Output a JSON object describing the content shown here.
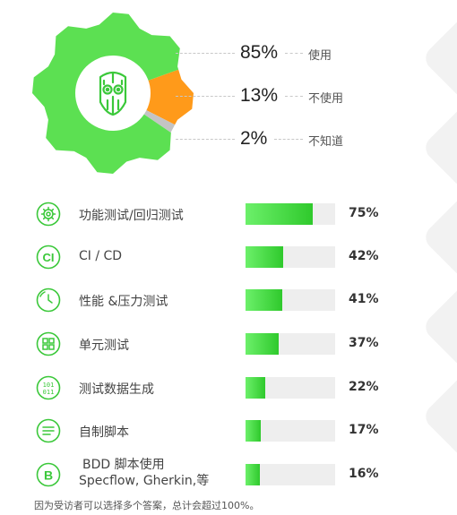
{
  "chart_data": [
    {
      "type": "pie",
      "categories": [
        "使用",
        "不使用",
        "不知道"
      ],
      "values": [
        85,
        13,
        2
      ],
      "value_labels": [
        "85%",
        "13%",
        "2%"
      ],
      "colors": [
        "#5ce052",
        "#ff9a1a",
        "#c4c4c4"
      ]
    },
    {
      "type": "bar",
      "orientation": "horizontal",
      "categories": [
        "功能测试/回归测试",
        "CI / CD",
        "性能 &压力测试",
        "单元测试",
        "测试数据生成",
        "自制脚本",
        "BDD 脚本使用 Specflow, Gherkin,等"
      ],
      "values": [
        75,
        42,
        41,
        37,
        22,
        17,
        16
      ],
      "value_labels": [
        "75%",
        "42%",
        "41%",
        "37%",
        "22%",
        "17%",
        "16%"
      ],
      "xlim": [
        0,
        100
      ],
      "icons": [
        "gear-icon",
        "ci-icon",
        "stopwatch-icon",
        "grid-icon",
        "binary-icon",
        "script-icon",
        "b-icon"
      ],
      "colors": [
        "#5ce052",
        "#eeeeee"
      ]
    }
  ],
  "rows_label_lines": {
    "bdd_line1": "BDD 脚本使用",
    "bdd_line2": "Specflow, Gherkin,等"
  },
  "footnote": "因为受访者可以选择多个答案，总计会超过100%。"
}
